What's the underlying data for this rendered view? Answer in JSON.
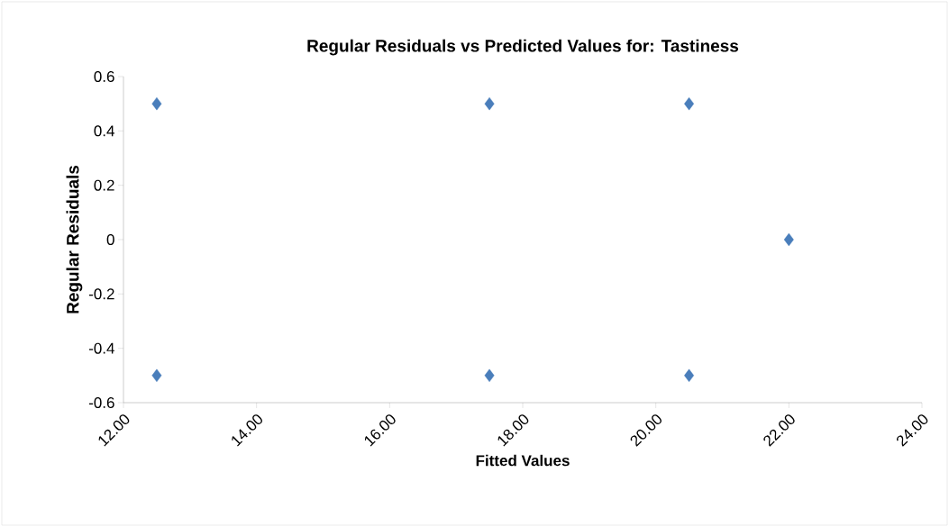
{
  "chart_data": {
    "type": "scatter",
    "title": "Regular Residuals vs Predicted Values for: Tastiness",
    "xlabel": "Fitted Values",
    "ylabel": "Regular Residuals",
    "x": [
      12.5,
      12.5,
      17.5,
      17.5,
      20.5,
      20.5,
      22.0
    ],
    "series": [
      {
        "color": "#4a7ebb",
        "values": [
          0.5,
          -0.5,
          0.5,
          -0.5,
          0.5,
          -0.5,
          0
        ]
      }
    ],
    "xlim": [
      12,
      24
    ],
    "ylim": [
      -0.6,
      0.6
    ],
    "xticks": [
      {
        "value": 12,
        "label": "12.00"
      },
      {
        "value": 14,
        "label": "14.00"
      },
      {
        "value": 16,
        "label": "16.00"
      },
      {
        "value": 18,
        "label": "18.00"
      },
      {
        "value": 20,
        "label": "20.00"
      },
      {
        "value": 22,
        "label": "22.00"
      },
      {
        "value": 24,
        "label": "24.00"
      }
    ],
    "yticks": [
      -0.6,
      -0.4,
      -0.2,
      0,
      0.2,
      0.4,
      0.6
    ],
    "marker": "diamond",
    "grid": false
  }
}
